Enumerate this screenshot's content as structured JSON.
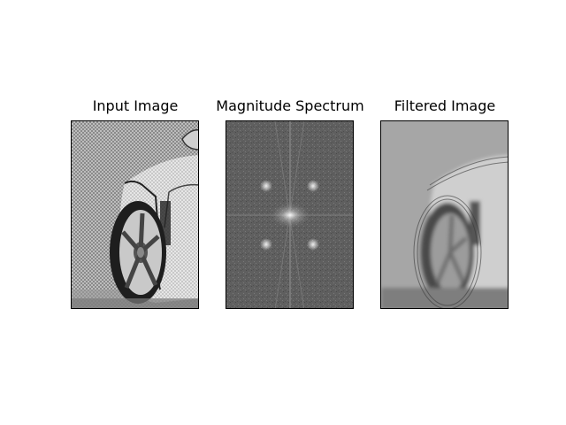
{
  "panels": [
    {
      "title": "Input Image"
    },
    {
      "title": "Magnitude Spectrum"
    },
    {
      "title": "Filtered Image"
    }
  ]
}
